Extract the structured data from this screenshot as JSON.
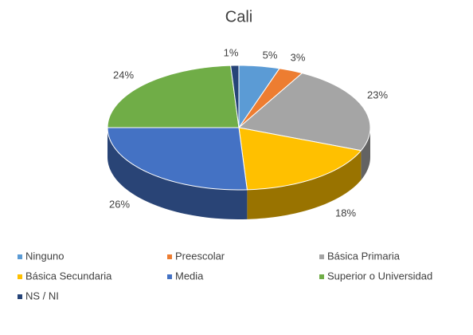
{
  "chart_data": {
    "type": "pie",
    "title": "Cali",
    "categories": [
      "Ninguno",
      "Preescolar",
      "Básica Primaria",
      "Básica Secundaria",
      "Media",
      "Superior o Universidad",
      "NS / NI"
    ],
    "values": [
      5,
      3,
      23,
      18,
      26,
      24,
      1
    ],
    "value_labels": [
      "5%",
      "3%",
      "23%",
      "18%",
      "26%",
      "24%",
      "1%"
    ],
    "colors": [
      "#5b9bd5",
      "#ed7d31",
      "#a5a5a5",
      "#ffc000",
      "#4472c4",
      "#70ad47",
      "#264478"
    ],
    "legend": "bottom"
  }
}
